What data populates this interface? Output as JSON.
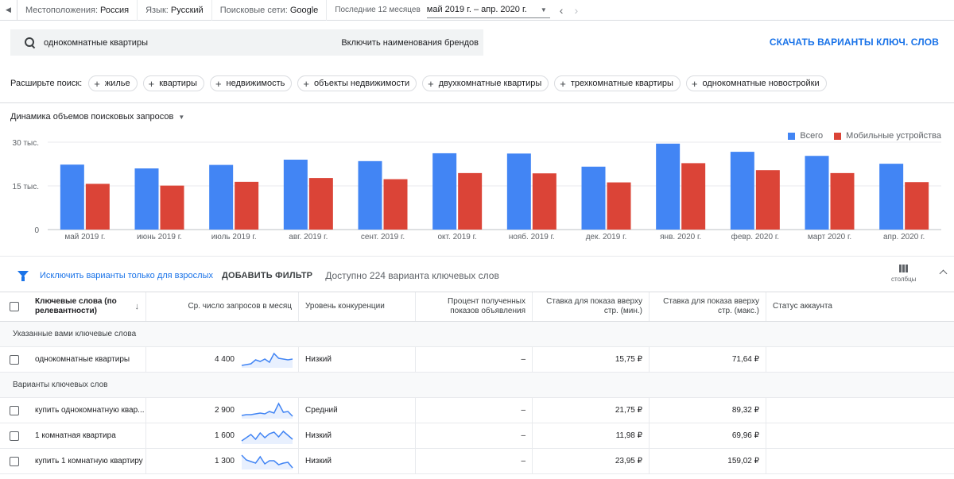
{
  "topbar": {
    "location_label": "Местоположения:",
    "location_value": "Россия",
    "language_label": "Язык:",
    "language_value": "Русский",
    "network_label": "Поисковые сети:",
    "network_value": "Google",
    "period_label": "Последние 12 месяцев",
    "period_range": "май 2019 г. – апр. 2020 г."
  },
  "search": {
    "query": "однокомнатные квартиры",
    "brand_toggle": "Включить наименования брендов"
  },
  "download_label": "СКАЧАТЬ ВАРИАНТЫ КЛЮЧ. СЛОВ",
  "expand": {
    "label": "Расширьте поиск:",
    "chips": [
      "жилье",
      "квартиры",
      "недвижимость",
      "объекты недвижимости",
      "двухкомнатные квартиры",
      "трехкомнатные квартиры",
      "однокомнатные новостройки"
    ]
  },
  "chart_selector": "Динамика объемов поисковых запросов",
  "colors": {
    "total": "#4285f4",
    "mobile": "#db4437",
    "accent": "#1a73e8"
  },
  "chart_data": {
    "type": "bar",
    "title": "Динамика объемов поисковых запросов",
    "categories": [
      "май 2019 г.",
      "июнь 2019 г.",
      "июль 2019 г.",
      "авг. 2019 г.",
      "сент. 2019 г.",
      "окт. 2019 г.",
      "нояб. 2019 г.",
      "дек. 2019 г.",
      "янв. 2020 г.",
      "февр. 2020 г.",
      "март 2020 г.",
      "апр. 2020 г."
    ],
    "series": [
      {
        "name": "Всего",
        "values": [
          22300,
          21000,
          22200,
          24000,
          23500,
          26200,
          26100,
          21600,
          29500,
          26700,
          25300,
          22600
        ]
      },
      {
        "name": "Мобильные устройства",
        "values": [
          15700,
          15100,
          16400,
          17700,
          17300,
          19400,
          19300,
          16200,
          22800,
          20400,
          19400,
          16300
        ]
      }
    ],
    "yticks": [
      {
        "value": 30000,
        "label": "30 тыс."
      },
      {
        "value": 15000,
        "label": "15 тыс."
      },
      {
        "value": 0,
        "label": "0"
      }
    ],
    "ylim": [
      0,
      30000
    ],
    "xlabel": "",
    "ylabel": "",
    "legend_position": "top-right"
  },
  "filterbar": {
    "exclude_adult": "Исключить варианты только для взрослых",
    "add_filter": "ДОБАВИТЬ ФИЛЬТР",
    "available": "Доступно 224 варианта ключевых слов",
    "columns": "столбцы"
  },
  "table": {
    "headers": {
      "keyword": "Ключевые слова (по релевантности)",
      "avg_searches": "Ср. число запросов в месяц",
      "competition": "Уровень конкуренции",
      "impr_share": "Процент полученных показов объявления",
      "bid_low": "Ставка для показа вверху стр. (мин.)",
      "bid_high": "Ставка для показа вверху стр. (макс.)",
      "account_status": "Статус аккаунта"
    },
    "group_provided": "Указанные вами ключевые слова",
    "group_ideas": "Варианты ключевых слов",
    "provided_rows": [
      {
        "keyword": "однокомнатные квартиры",
        "volume": "4 400",
        "competition": "Низкий",
        "share": "–",
        "low": "15,75 ₽",
        "high": "71,64 ₽",
        "trend": [
          0.15,
          0.2,
          0.25,
          0.5,
          0.4,
          0.55,
          0.35,
          0.9,
          0.6,
          0.55,
          0.5,
          0.55
        ]
      }
    ],
    "idea_rows": [
      {
        "keyword": "купить однокомнатную квар...",
        "volume": "2 900",
        "competition": "Средний",
        "share": "–",
        "low": "21,75 ₽",
        "high": "89,32 ₽",
        "trend": [
          0.2,
          0.25,
          0.25,
          0.3,
          0.35,
          0.3,
          0.45,
          0.35,
          0.95,
          0.4,
          0.45,
          0.15
        ]
      },
      {
        "keyword": "1 комнатная квартира",
        "volume": "1 600",
        "competition": "Низкий",
        "share": "–",
        "low": "11,98 ₽",
        "high": "69,96 ₽",
        "trend": [
          0.2,
          0.4,
          0.6,
          0.3,
          0.7,
          0.4,
          0.65,
          0.75,
          0.45,
          0.8,
          0.55,
          0.3
        ]
      },
      {
        "keyword": "купить 1 комнатную квартиру",
        "volume": "1 300",
        "competition": "Низкий",
        "share": "–",
        "low": "23,95 ₽",
        "high": "159,02 ₽",
        "trend": [
          0.9,
          0.6,
          0.5,
          0.4,
          0.8,
          0.35,
          0.55,
          0.55,
          0.3,
          0.4,
          0.45,
          0.1
        ]
      }
    ]
  }
}
